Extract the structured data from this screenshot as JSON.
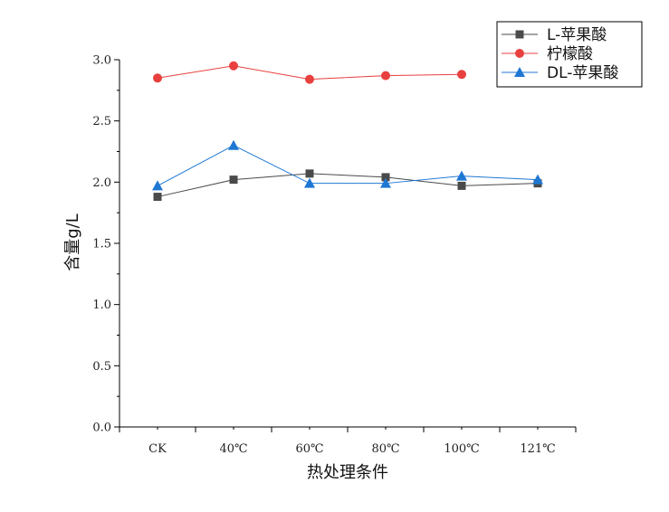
{
  "chart_data": {
    "type": "line",
    "title": "",
    "xlabel": "热处理条件",
    "ylabel": "含量g/L",
    "categories": [
      "CK",
      "40℃",
      "60℃",
      "80℃",
      "100℃",
      "121℃"
    ],
    "ylim": [
      0,
      3.0
    ],
    "yticks": [
      "0.0",
      "0.5",
      "1.0",
      "1.5",
      "2.0",
      "2.5",
      "3.0"
    ],
    "grid": false,
    "legend": "top-right",
    "series": [
      {
        "name": "L-苹果酸",
        "marker": "square",
        "color": "#4a4a4a",
        "values": [
          1.88,
          2.02,
          2.07,
          2.04,
          1.97,
          1.99
        ]
      },
      {
        "name": "柠檬酸",
        "marker": "circle",
        "color": "#e8403f",
        "values": [
          2.85,
          2.95,
          2.84,
          2.87,
          2.88,
          null
        ]
      },
      {
        "name": "DL-苹果酸",
        "marker": "triangle",
        "color": "#1f77d4",
        "values": [
          1.97,
          2.3,
          1.99,
          1.99,
          2.05,
          2.02
        ]
      }
    ]
  }
}
